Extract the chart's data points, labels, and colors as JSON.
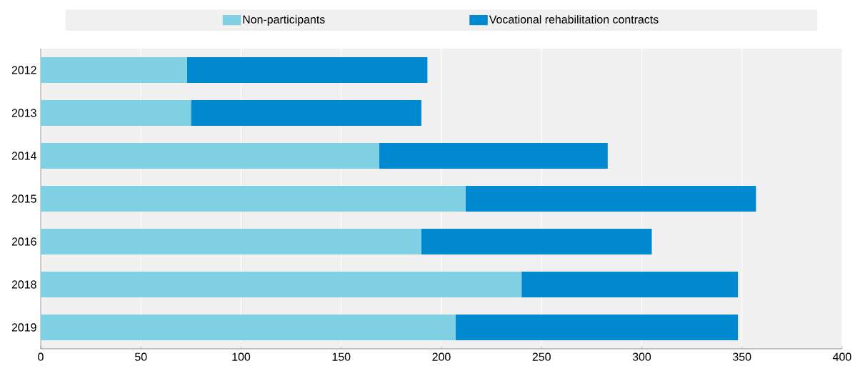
{
  "chart_data": {
    "type": "bar",
    "orientation": "horizontal",
    "stacked": true,
    "categories": [
      "2012",
      "2013",
      "2014",
      "2015",
      "2016",
      "2018",
      "2019"
    ],
    "series": [
      {
        "name": "Non-participants",
        "color": "#7fd0e3",
        "values": [
          73,
          75,
          169,
          212,
          190,
          240,
          207
        ]
      },
      {
        "name": "Vocational rehabilitation contracts",
        "color": "#0088d1",
        "values": [
          120,
          115,
          114,
          145,
          115,
          108,
          141
        ]
      }
    ],
    "xlim": [
      0,
      400
    ],
    "xticks": [
      0,
      50,
      100,
      150,
      200,
      250,
      300,
      350,
      400
    ],
    "grid": "x",
    "legend": "top"
  }
}
